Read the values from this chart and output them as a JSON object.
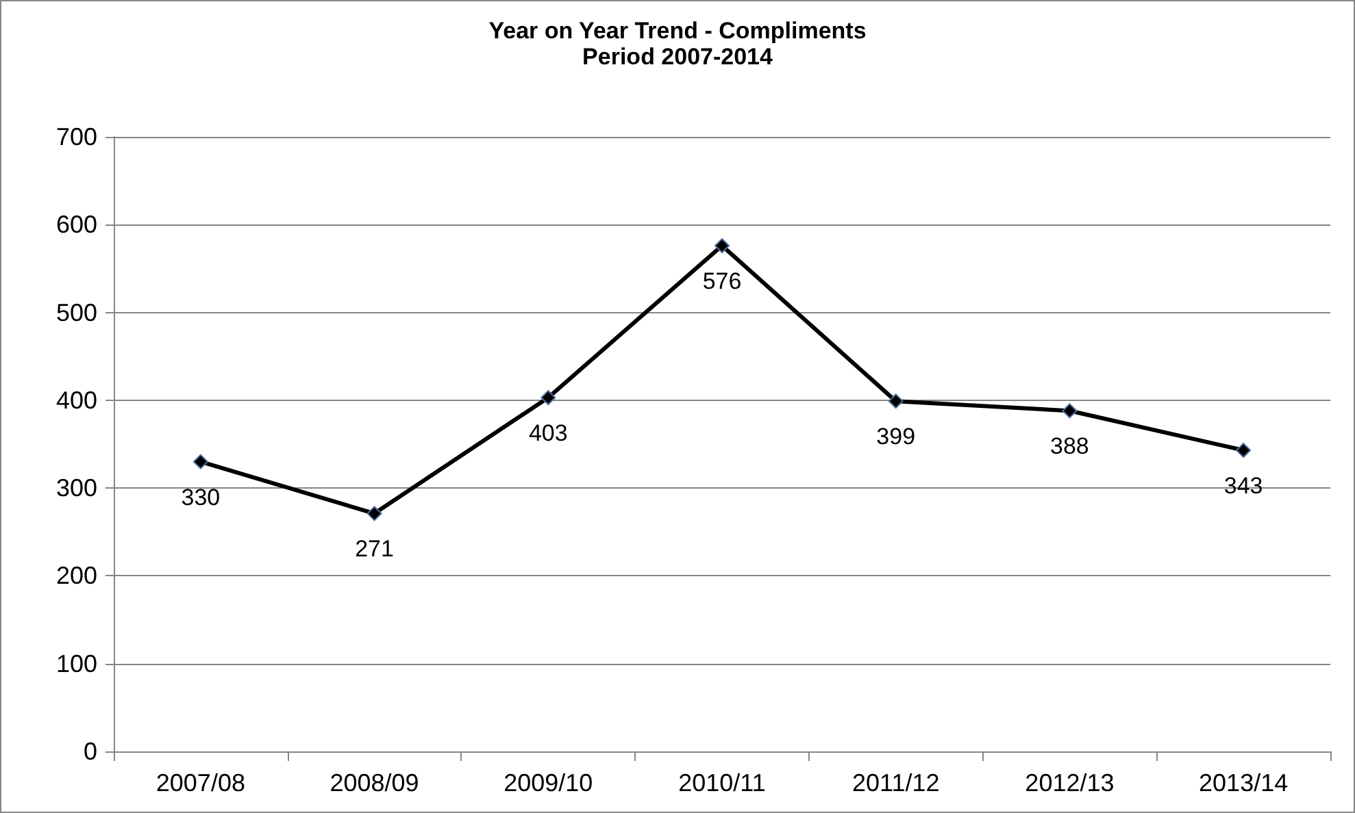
{
  "chart_data": {
    "type": "line",
    "title": "Year on Year Trend - Compliments",
    "subtitle": "Period 2007-2014",
    "categories": [
      "2007/08",
      "2008/09",
      "2009/10",
      "2010/11",
      "2011/12",
      "2012/13",
      "2013/14"
    ],
    "series": [
      {
        "color": "#000000",
        "values": [
          330,
          271,
          403,
          576,
          399,
          388,
          343
        ]
      }
    ],
    "ylim": [
      0,
      700
    ],
    "yticks": [
      0,
      100,
      200,
      300,
      400,
      500,
      600,
      700
    ],
    "grid": "y",
    "marker": "diamond",
    "line_style": "solid",
    "data_labels": true
  }
}
